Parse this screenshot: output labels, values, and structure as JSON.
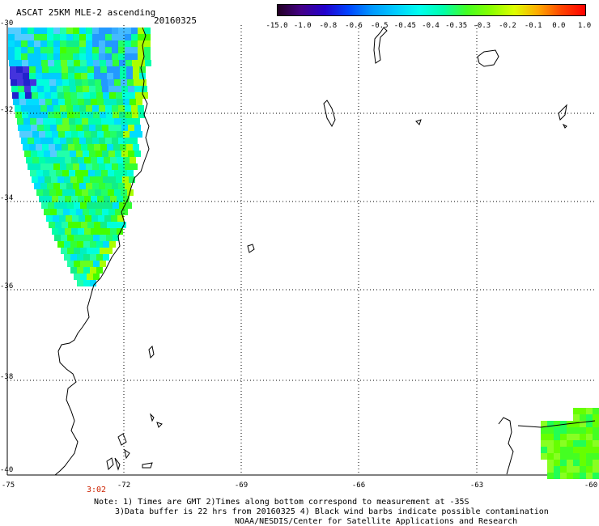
{
  "header": {
    "title": "ASCAT 25KM MLE-2 ascending",
    "date": "20160325"
  },
  "colorbar": {
    "ticks": [
      "-15.0",
      "-1.0",
      "-0.8",
      "-0.6",
      "-0.5",
      "-0.45",
      "-0.4",
      "-0.35",
      "-0.3",
      "-0.2",
      "-0.1",
      "0.0",
      "1.0"
    ],
    "colors": [
      "#220022",
      "#440088",
      "#2200cc",
      "#0044ff",
      "#0099ff",
      "#00ccff",
      "#00ffee",
      "#00ffaa",
      "#44ff22",
      "#88ff00",
      "#ddff00",
      "#ffaa00",
      "#ff4400",
      "#ff0000"
    ]
  },
  "map": {
    "lat_labels": [
      "-30",
      "-32",
      "-34",
      "-36",
      "-38",
      "-40"
    ],
    "lon_labels": [
      "-75",
      "-72",
      "-69",
      "-66",
      "-63",
      "-60"
    ],
    "time_label": "3:02",
    "lat_range": [
      -40,
      -30
    ],
    "lon_range": [
      -75,
      -60
    ]
  },
  "notes": {
    "line1": "Note: 1) Times are GMT 2)Times along bottom correspond to measurement at -35S",
    "line2": "3)Data buffer is 22 hrs from 20160325 4) Black wind barbs indicate possible contamination",
    "line3": "NOAA/NESDIS/Center for Satellite Applications and Research"
  }
}
